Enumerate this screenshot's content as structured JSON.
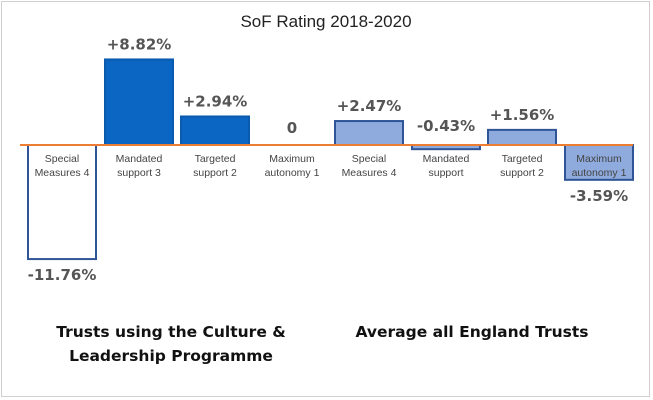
{
  "chart_data": {
    "type": "bar",
    "title": "SoF Rating 2018-2020",
    "ylim": [
      -11.76,
      8.82
    ],
    "grid": false,
    "legend": "none",
    "baseline_color": "#ED7D31",
    "groups": [
      {
        "label": [
          "Trusts using the Culture &",
          "Leadership Programme"
        ],
        "bar_fill": "#0A66C2",
        "bar_stroke": "#2F5597",
        "bars": [
          {
            "category": [
              "Special",
              "Measures 4"
            ],
            "value": -11.76,
            "label": "-11.76%"
          },
          {
            "category": [
              "Mandated",
              "support 3"
            ],
            "value": 8.82,
            "label": "+8.82%"
          },
          {
            "category": [
              "Targeted",
              "support 2"
            ],
            "value": 2.94,
            "label": "+2.94%"
          },
          {
            "category": [
              "Maximum",
              "autonomy 1"
            ],
            "value": 0,
            "label": "0"
          }
        ]
      },
      {
        "label": [
          "Average all England Trusts"
        ],
        "bar_fill": "#8FAADC",
        "bar_stroke": "#2F5597",
        "bars": [
          {
            "category": [
              "Special",
              "Measures 4"
            ],
            "value": 2.47,
            "label": "+2.47%"
          },
          {
            "category": [
              "Mandated",
              "support"
            ],
            "value": -0.43,
            "label": "-0.43%"
          },
          {
            "category": [
              "Targeted",
              "support 2"
            ],
            "value": 1.56,
            "label": "+1.56%"
          },
          {
            "category": [
              "Maximum",
              "autonomy 1"
            ],
            "value": -3.59,
            "label": "-3.59%"
          }
        ]
      }
    ]
  }
}
